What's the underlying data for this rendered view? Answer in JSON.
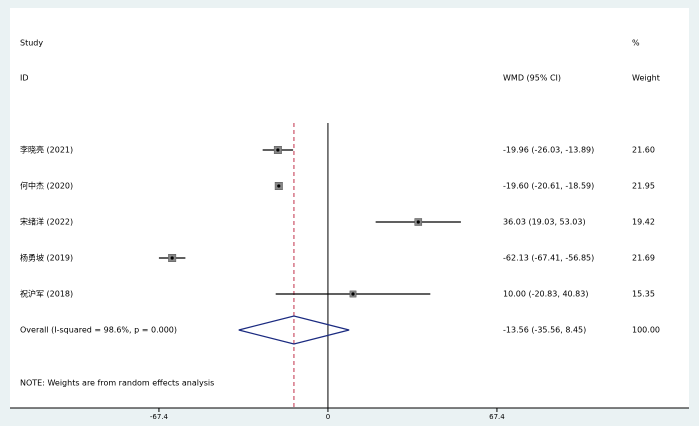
{
  "chart_data": {
    "type": "forest",
    "headers": {
      "study": "Study",
      "id": "ID",
      "ci": "WMD (95% CI)",
      "pct": "%",
      "weight": "Weight"
    },
    "studies": [
      {
        "label": "李晓亮 (2021)",
        "estimate": -19.96,
        "lower": -26.03,
        "upper": -13.89,
        "ci_text": "-19.96 (-26.03, -13.89)",
        "weight": 21.6,
        "weight_label": "21.60"
      },
      {
        "label": "何中杰 (2020)",
        "estimate": -19.6,
        "lower": -20.61,
        "upper": -18.59,
        "ci_text": "-19.60 (-20.61, -18.59)",
        "weight": 21.95,
        "weight_label": "21.95"
      },
      {
        "label": "宋绪洋 (2022)",
        "estimate": 36.03,
        "lower": 19.03,
        "upper": 53.03,
        "ci_text": "36.03 (19.03, 53.03)",
        "weight": 19.42,
        "weight_label": "19.42"
      },
      {
        "label": "杨勇坡 (2019)",
        "estimate": -62.13,
        "lower": -67.41,
        "upper": -56.85,
        "ci_text": "-62.13 (-67.41, -56.85)",
        "weight": 21.69,
        "weight_label": "21.69"
      },
      {
        "label": "祝沪军 (2018)",
        "estimate": 10,
        "lower": -20.83,
        "upper": 40.83,
        "ci_text": "10.00 (-20.83, 40.83)",
        "weight": 15.35,
        "weight_label": "15.35"
      }
    ],
    "overall": {
      "label": "Overall  (I-squared = 98.6%, p = 0.000)",
      "estimate": -13.56,
      "lower": -35.56,
      "upper": 8.45,
      "ci_text": "-13.56 (-35.56, 8.45)",
      "weight": 100,
      "weight_label": "100.00"
    },
    "note": "NOTE: Weights are from random effects analysis",
    "xlim": [
      -126.8,
      144
    ],
    "xticks": [
      -67.4,
      0,
      67.4
    ]
  }
}
